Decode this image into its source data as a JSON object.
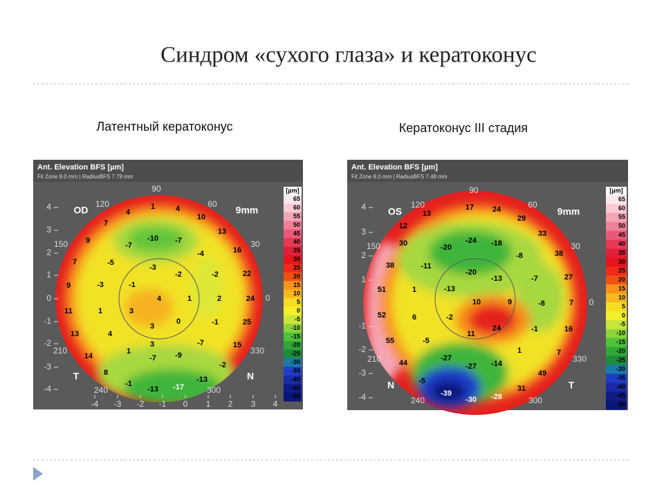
{
  "title": "Синдром «сухого глаза» и кератоконус",
  "panels": [
    {
      "caption": "Латентный кератоконус",
      "header": "Ant. Elevation BFS  [µm]",
      "subheader": "Fit Zone 8.0 mm | RadiusBFS 7.79 mm",
      "eye": "OD",
      "zone": "9mm",
      "left_label": "T",
      "right_label": "N",
      "angles": [
        90,
        120,
        60,
        150,
        30,
        0,
        210,
        330,
        240,
        300
      ],
      "yticks": [
        4,
        3,
        2,
        1,
        0,
        -1,
        -2,
        -3,
        -4
      ],
      "xticks": [
        -4,
        -3,
        -2,
        -1,
        0,
        1,
        2,
        3,
        4
      ],
      "scale_unit": "[µm]",
      "scale": [
        65,
        60,
        55,
        50,
        45,
        40,
        35,
        30,
        25,
        20,
        15,
        10,
        5,
        0,
        -5,
        -10,
        -15,
        -20,
        -25,
        -30,
        -35,
        -40,
        -45,
        -50
      ],
      "values": [
        1,
        4,
        4,
        10,
        7,
        13,
        -10,
        -7,
        -7,
        9,
        16,
        -4,
        -5,
        7,
        -3,
        22,
        -2,
        -2,
        -3,
        -1,
        9,
        4,
        1,
        2,
        24,
        11,
        1,
        3,
        3,
        0,
        -1,
        25,
        13,
        4,
        3,
        -7,
        15,
        14,
        1,
        -7,
        -9,
        -2,
        8,
        -1,
        -13,
        -17,
        -13
      ]
    },
    {
      "caption": "Кератоконус III стадия",
      "header": "Ant. Elevation BFS  [µm]",
      "subheader": "Fit Zone 8.0 mm | RadiusBFS 7.48 mm",
      "eye": "OS",
      "zone": "9mm",
      "left_label": "N",
      "right_label": "T",
      "angles": [
        90,
        120,
        60,
        150,
        30,
        0,
        210,
        330,
        240,
        300
      ],
      "yticks": [
        4,
        3,
        2,
        1,
        -1,
        -2,
        -3,
        -4
      ],
      "scale_unit": "[µm]",
      "scale": [
        65,
        60,
        55,
        50,
        45,
        40,
        35,
        30,
        25,
        20,
        15,
        10,
        5,
        0,
        -5,
        -10,
        -15,
        -20,
        -25,
        -30,
        -35,
        -40,
        -45,
        -50
      ],
      "values": [
        13,
        17,
        24,
        29,
        12,
        33,
        30,
        -24,
        -18,
        -20,
        38,
        38,
        -11,
        -8,
        -20,
        -13,
        -7,
        27,
        51,
        1,
        -13,
        10,
        9,
        -8,
        7,
        52,
        6,
        -2,
        24,
        11,
        -1,
        16,
        55,
        -5,
        1,
        7,
        44,
        -27,
        -27,
        -14,
        49,
        -5,
        31,
        -39,
        -30,
        -28
      ]
    }
  ]
}
